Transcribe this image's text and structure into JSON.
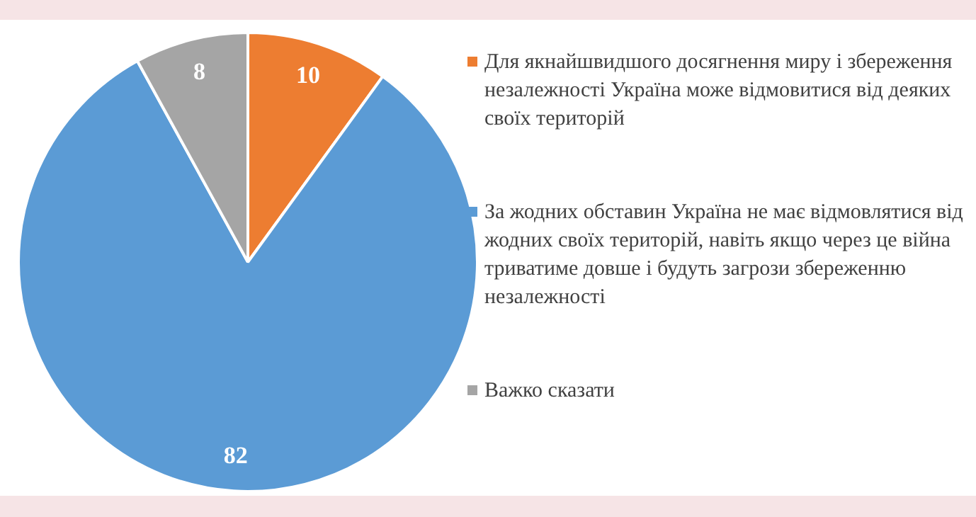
{
  "chart_data": {
    "type": "pie",
    "categories": [
      "Для якнайшвидшого досягнення миру і збереження незалежності Україна може відмовитися від деяких своїх територій",
      "За жодних обставин Україна не має відмовлятися від жодних своїх територій, навіть якщо через це війна триватиме довше і будуть загрози збереженню незалежності",
      "Важко сказати"
    ],
    "values": [
      10,
      82,
      8
    ],
    "colors": [
      "#ed7d31",
      "#5b9bd5",
      "#a5a5a5"
    ],
    "data_labels": true,
    "legend": "right"
  }
}
